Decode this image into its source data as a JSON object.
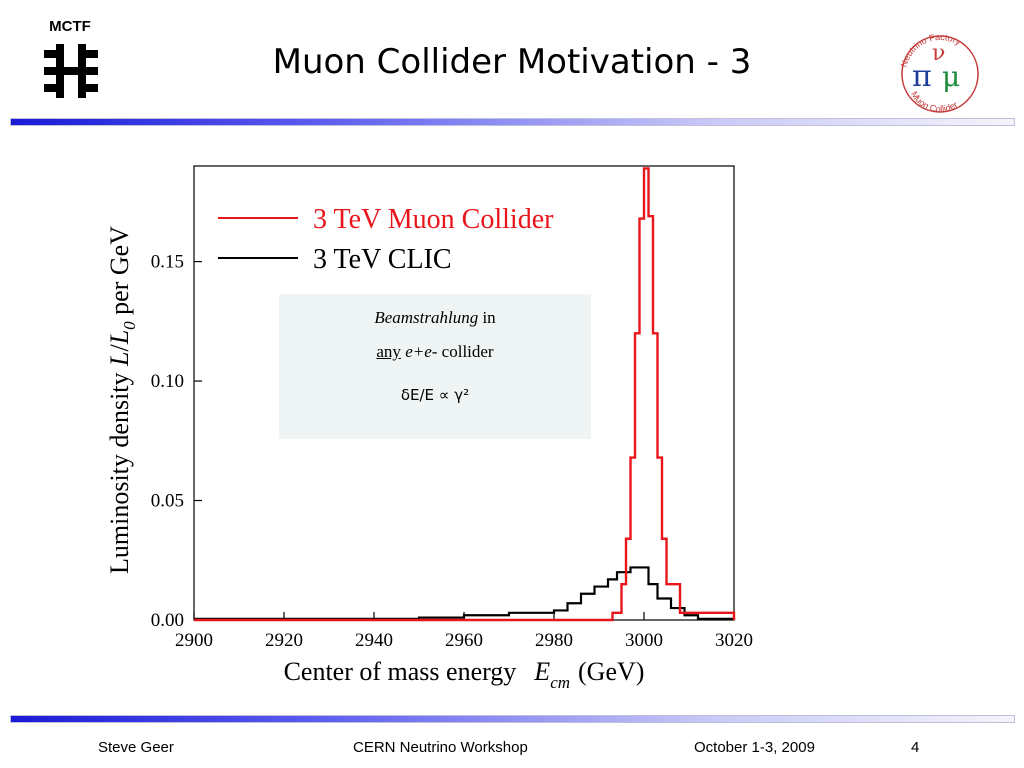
{
  "header": {
    "org_label": "MCTF",
    "title": "Muon Collider Motivation - 3",
    "nf_logo": {
      "top_text": "Neutrino Factory",
      "bottom_text": "Muon Collider",
      "symbols": [
        "ν",
        "π",
        "μ"
      ]
    }
  },
  "annotation": {
    "line1_italic": "Beamstrahlung",
    "line1_rest": " in",
    "line2_underlined": "any",
    "line2_italic": " e+e-",
    "line2_rest": " collider",
    "line3": "δE/E ∝ γ²"
  },
  "chart_data": {
    "type": "line",
    "xlabel": "Center of mass energy",
    "xlabel_symbol": "E",
    "xlabel_subscript": "cm",
    "xlabel_unit": "(GeV)",
    "ylabel": "Luminosity density L/L0 per GeV",
    "ylabel_prefix": "Luminosity density ",
    "ylabel_L": "L",
    "ylabel_slash": "/",
    "ylabel_L0": "L",
    "ylabel_L0_sub": "0",
    "ylabel_suffix": " per GeV",
    "xlim": [
      2900,
      3020
    ],
    "ylim": [
      0,
      0.19
    ],
    "x_ticks": [
      2900,
      2920,
      2940,
      2960,
      2980,
      3000,
      3020
    ],
    "x_tick_labels": [
      "2900",
      "2920",
      "2940",
      "2960",
      "2980",
      "3000",
      "3020"
    ],
    "y_ticks": [
      0,
      0.05,
      0.1,
      0.15
    ],
    "y_tick_labels": [
      "0.00",
      "0.05",
      "0.10",
      "0.15"
    ],
    "legend_position": "top-left",
    "colors": {
      "muon": "#e8161b",
      "clic": "#000000"
    },
    "series": [
      {
        "name": "3 TeV Muon Collider",
        "step": true,
        "x": [
          2900,
          2990,
          2993,
          2995,
          2996,
          2997,
          2998,
          2999,
          3000,
          3001,
          3002,
          3003,
          3004,
          3005,
          3008,
          3020
        ],
        "y": [
          0,
          0,
          0.003,
          0.015,
          0.034,
          0.068,
          0.12,
          0.168,
          0.189,
          0.169,
          0.12,
          0.068,
          0.034,
          0.015,
          0.003,
          0
        ]
      },
      {
        "name": "3 TeV CLIC",
        "step": true,
        "x": [
          2900,
          2950,
          2960,
          2970,
          2980,
          2983,
          2986,
          2989,
          2992,
          2994,
          2997,
          3001,
          3003,
          3006,
          3009,
          3012,
          3020
        ],
        "y": [
          0.0005,
          0.001,
          0.002,
          0.003,
          0.004,
          0.007,
          0.011,
          0.014,
          0.017,
          0.02,
          0.022,
          0.015,
          0.009,
          0.005,
          0.002,
          0.0005,
          0
        ]
      }
    ]
  },
  "footer": {
    "author": "Steve Geer",
    "event": "CERN Neutrino Workshop",
    "date": "October 1-3, 2009",
    "page": "4"
  }
}
